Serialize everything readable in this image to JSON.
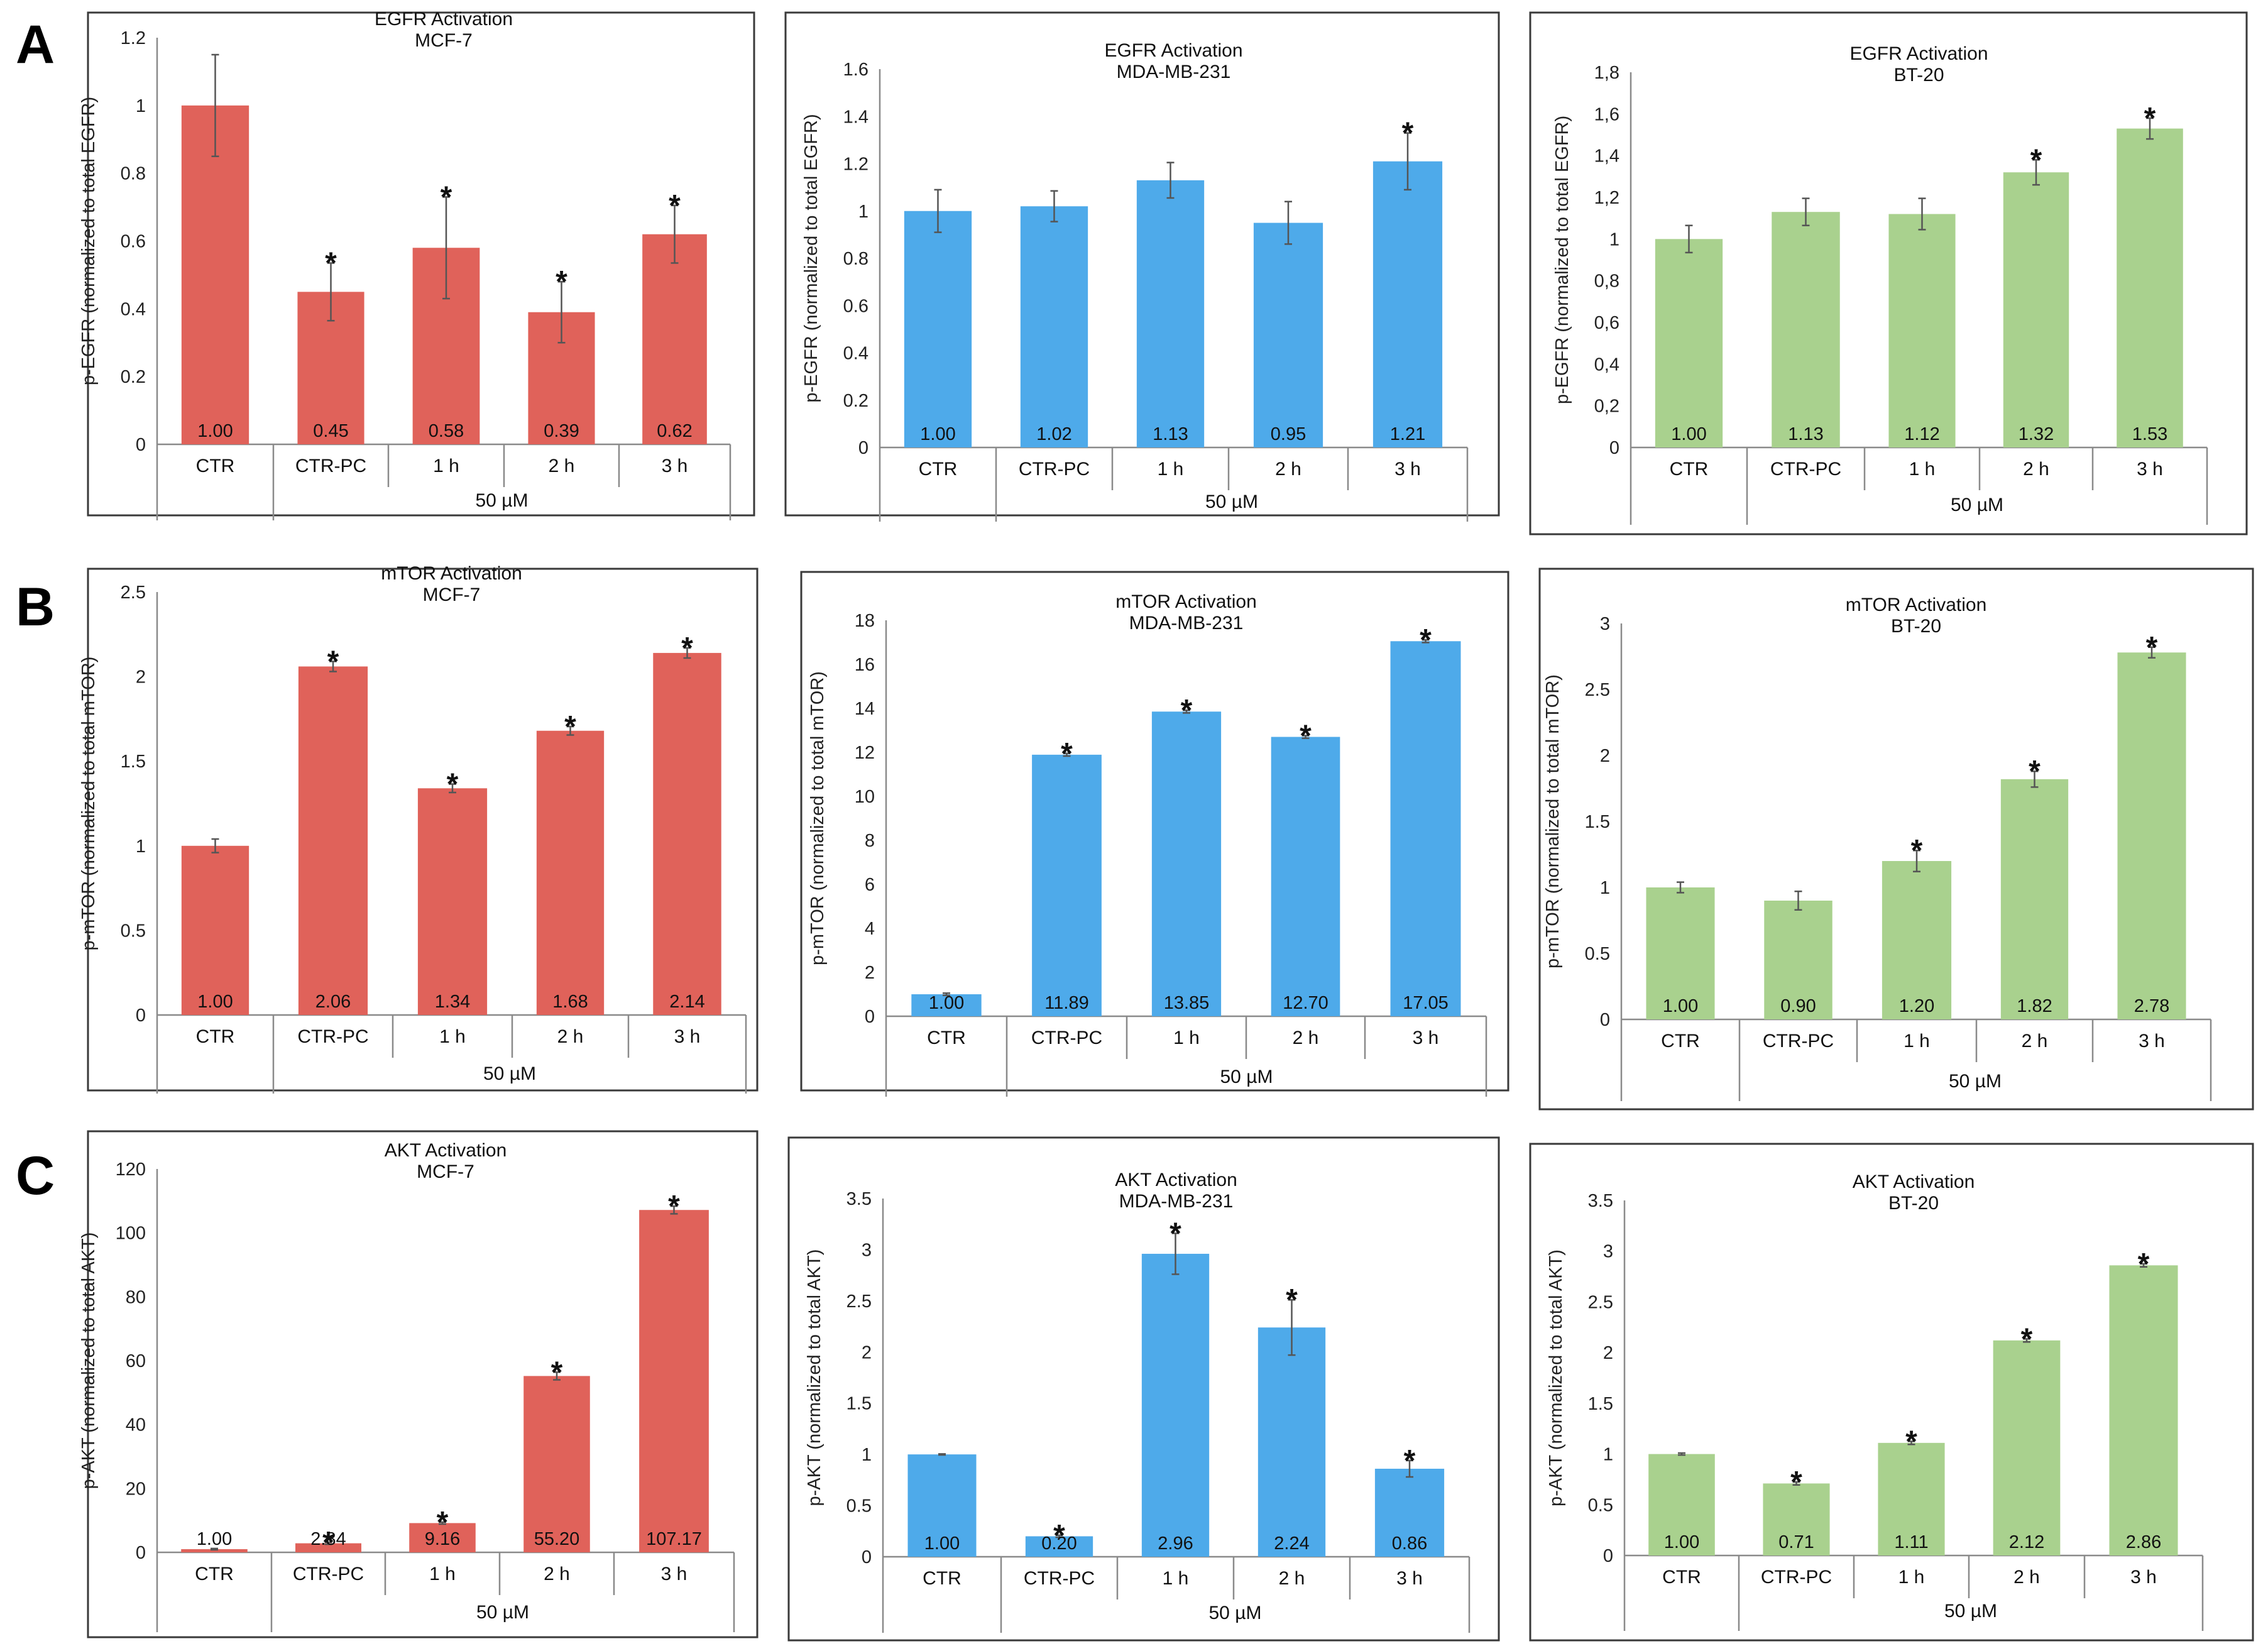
{
  "figure": {
    "group_label": "50 µM",
    "star_symbol": "*",
    "colors": {
      "MCF-7": "#e0625a",
      "MDA-MB-231": "#4eaaea",
      "BT-20": "#a9d18e"
    }
  },
  "chart_data": [
    {
      "panel": "A",
      "type": "bar",
      "title": "EGFR Activation",
      "subtitle": "MCF-7",
      "ylabel": "p-EGFR (normalized to total EGFR)",
      "categories": [
        "CTR",
        "CTR-PC",
        "1 h",
        "2 h",
        "3 h"
      ],
      "values": [
        1.0,
        0.45,
        0.58,
        0.39,
        0.62
      ],
      "errors": [
        0.15,
        0.085,
        0.15,
        0.09,
        0.085
      ],
      "value_labels": [
        "1.00",
        "0.45",
        "0.58",
        "0.39",
        "0.62"
      ],
      "significant": [
        false,
        true,
        true,
        true,
        true
      ],
      "ylim": [
        0,
        1.2
      ],
      "yticks": [
        "0",
        "0.2",
        "0.4",
        "0.6",
        "0.8",
        "1",
        "1.2"
      ],
      "color": "#e0625a"
    },
    {
      "panel": "",
      "type": "bar",
      "title": "EGFR Activation",
      "subtitle": "MDA-MB-231",
      "ylabel": "p-EGFR (normalized to total EGFR)",
      "categories": [
        "CTR",
        "CTR-PC",
        "1 h",
        "2 h",
        "3 h"
      ],
      "values": [
        1.0,
        1.02,
        1.13,
        0.95,
        1.21
      ],
      "errors": [
        0.09,
        0.065,
        0.075,
        0.09,
        0.12
      ],
      "value_labels": [
        "1.00",
        "1.02",
        "1.13",
        "0.95",
        "1.21"
      ],
      "significant": [
        false,
        false,
        false,
        false,
        true
      ],
      "ylim": [
        0,
        1.6
      ],
      "yticks": [
        "0",
        "0.2",
        "0.4",
        "0.6",
        "0.8",
        "1",
        "1.2",
        "1.4",
        "1.6"
      ],
      "color": "#4eaaea"
    },
    {
      "panel": "",
      "type": "bar",
      "title": "EGFR Activation",
      "subtitle": "BT-20",
      "ylabel": "p-EGFR (normalized to total EGFR)",
      "categories": [
        "CTR",
        "CTR-PC",
        "1 h",
        "2 h",
        "3 h"
      ],
      "values": [
        1.0,
        1.13,
        1.12,
        1.32,
        1.53
      ],
      "errors": [
        0.065,
        0.065,
        0.075,
        0.06,
        0.05
      ],
      "value_labels": [
        "1.00",
        "1.13",
        "1.12",
        "1.32",
        "1.53"
      ],
      "significant": [
        false,
        false,
        false,
        true,
        true
      ],
      "ylim": [
        0,
        1.8
      ],
      "yticks": [
        "0",
        "0,2",
        "0,4",
        "0,6",
        "0,8",
        "1",
        "1,2",
        "1,4",
        "1,6",
        "1,8"
      ],
      "color": "#a9d18e"
    },
    {
      "panel": "B",
      "type": "bar",
      "title": "mTOR Activation",
      "subtitle": "MCF-7",
      "ylabel": "p-mTOR (normalized to total mTOR)",
      "categories": [
        "CTR",
        "CTR-PC",
        "1 h",
        "2 h",
        "3 h"
      ],
      "values": [
        1.0,
        2.06,
        1.34,
        1.68,
        2.14
      ],
      "errors": [
        0.04,
        0.03,
        0.025,
        0.025,
        0.03
      ],
      "value_labels": [
        "1.00",
        "2.06",
        "1.34",
        "1.68",
        "2.14"
      ],
      "significant": [
        false,
        true,
        true,
        true,
        true
      ],
      "ylim": [
        0,
        2.5
      ],
      "yticks": [
        "0",
        "0.5",
        "1",
        "1.5",
        "2",
        "2.5"
      ],
      "color": "#e0625a"
    },
    {
      "panel": "",
      "type": "bar",
      "title": "mTOR Activation",
      "subtitle": "MDA-MB-231",
      "ylabel": "p-mTOR (normalized to total mTOR)",
      "categories": [
        "CTR",
        "CTR-PC",
        "1 h",
        "2 h",
        "3 h"
      ],
      "values": [
        1.0,
        11.89,
        13.85,
        12.7,
        17.05
      ],
      "errors": [
        0.05,
        0.06,
        0.06,
        0.06,
        0.06
      ],
      "value_labels": [
        "1.00",
        "11.89",
        "13.85",
        "12.70",
        "17.05"
      ],
      "significant": [
        false,
        true,
        true,
        true,
        true
      ],
      "ylim": [
        0,
        18
      ],
      "yticks": [
        "0",
        "2",
        "4",
        "6",
        "8",
        "10",
        "12",
        "14",
        "16",
        "18"
      ],
      "color": "#4eaaea"
    },
    {
      "panel": "",
      "type": "bar",
      "title": "mTOR Activation",
      "subtitle": "BT-20",
      "ylabel": "p-mTOR (normalized to total mTOR)",
      "categories": [
        "CTR",
        "CTR-PC",
        "1 h",
        "2 h",
        "3 h"
      ],
      "values": [
        1.0,
        0.9,
        1.2,
        1.82,
        2.78
      ],
      "errors": [
        0.04,
        0.07,
        0.08,
        0.06,
        0.04
      ],
      "value_labels": [
        "1.00",
        "0.90",
        "1.20",
        "1.82",
        "2.78"
      ],
      "significant": [
        false,
        false,
        true,
        true,
        true
      ],
      "ylim": [
        0,
        3
      ],
      "yticks": [
        "0",
        "0.5",
        "1",
        "1.5",
        "2",
        "2.5",
        "3"
      ],
      "color": "#a9d18e"
    },
    {
      "panel": "C",
      "type": "bar",
      "title": "AKT Activation",
      "subtitle": "MCF-7",
      "ylabel": "p-AKT (normalized to total AKT)",
      "categories": [
        "CTR",
        "CTR-PC",
        "1 h",
        "2 h",
        "3 h"
      ],
      "values": [
        1.0,
        2.84,
        9.16,
        55.2,
        107.17
      ],
      "errors": [
        0.2,
        0.3,
        0.3,
        1.2,
        1.2
      ],
      "value_labels": [
        "1.00",
        "2.84",
        "9.16",
        "55.20",
        "107.17"
      ],
      "significant": [
        false,
        true,
        true,
        true,
        true
      ],
      "ylim": [
        0,
        120
      ],
      "yticks": [
        "0",
        "20",
        "40",
        "60",
        "80",
        "100",
        "120"
      ],
      "color": "#e0625a"
    },
    {
      "panel": "",
      "type": "bar",
      "title": "AKT Activation",
      "subtitle": "MDA-MB-231",
      "ylabel": "p-AKT (normalized to total AKT)",
      "categories": [
        "CTR",
        "CTR-PC",
        "1 h",
        "2 h",
        "3 h"
      ],
      "values": [
        1.0,
        0.2,
        2.96,
        2.24,
        0.86
      ],
      "errors": [
        0.005,
        0.01,
        0.2,
        0.27,
        0.08
      ],
      "value_labels": [
        "1.00",
        "0.20",
        "2.96",
        "2.24",
        "0.86"
      ],
      "significant": [
        false,
        true,
        true,
        true,
        true
      ],
      "ylim": [
        0,
        3.5
      ],
      "yticks": [
        "0",
        "0.5",
        "1",
        "1.5",
        "2",
        "2.5",
        "3",
        "3.5"
      ],
      "color": "#4eaaea"
    },
    {
      "panel": "",
      "type": "bar",
      "title": "AKT Activation",
      "subtitle": "BT-20",
      "ylabel": "p-AKT (normalized to total AKT)",
      "categories": [
        "CTR",
        "CTR-PC",
        "1 h",
        "2 h",
        "3 h"
      ],
      "values": [
        1.0,
        0.71,
        1.11,
        2.12,
        2.86
      ],
      "errors": [
        0.01,
        0.015,
        0.015,
        0.015,
        0.015
      ],
      "value_labels": [
        "1.00",
        "0.71",
        "1.11",
        "2.12",
        "2.86"
      ],
      "significant": [
        false,
        true,
        true,
        true,
        true
      ],
      "ylim": [
        0,
        3.5
      ],
      "yticks": [
        "0",
        "0.5",
        "1",
        "1.5",
        "2",
        "2.5",
        "3",
        "3.5"
      ],
      "color": "#a9d18e"
    }
  ]
}
